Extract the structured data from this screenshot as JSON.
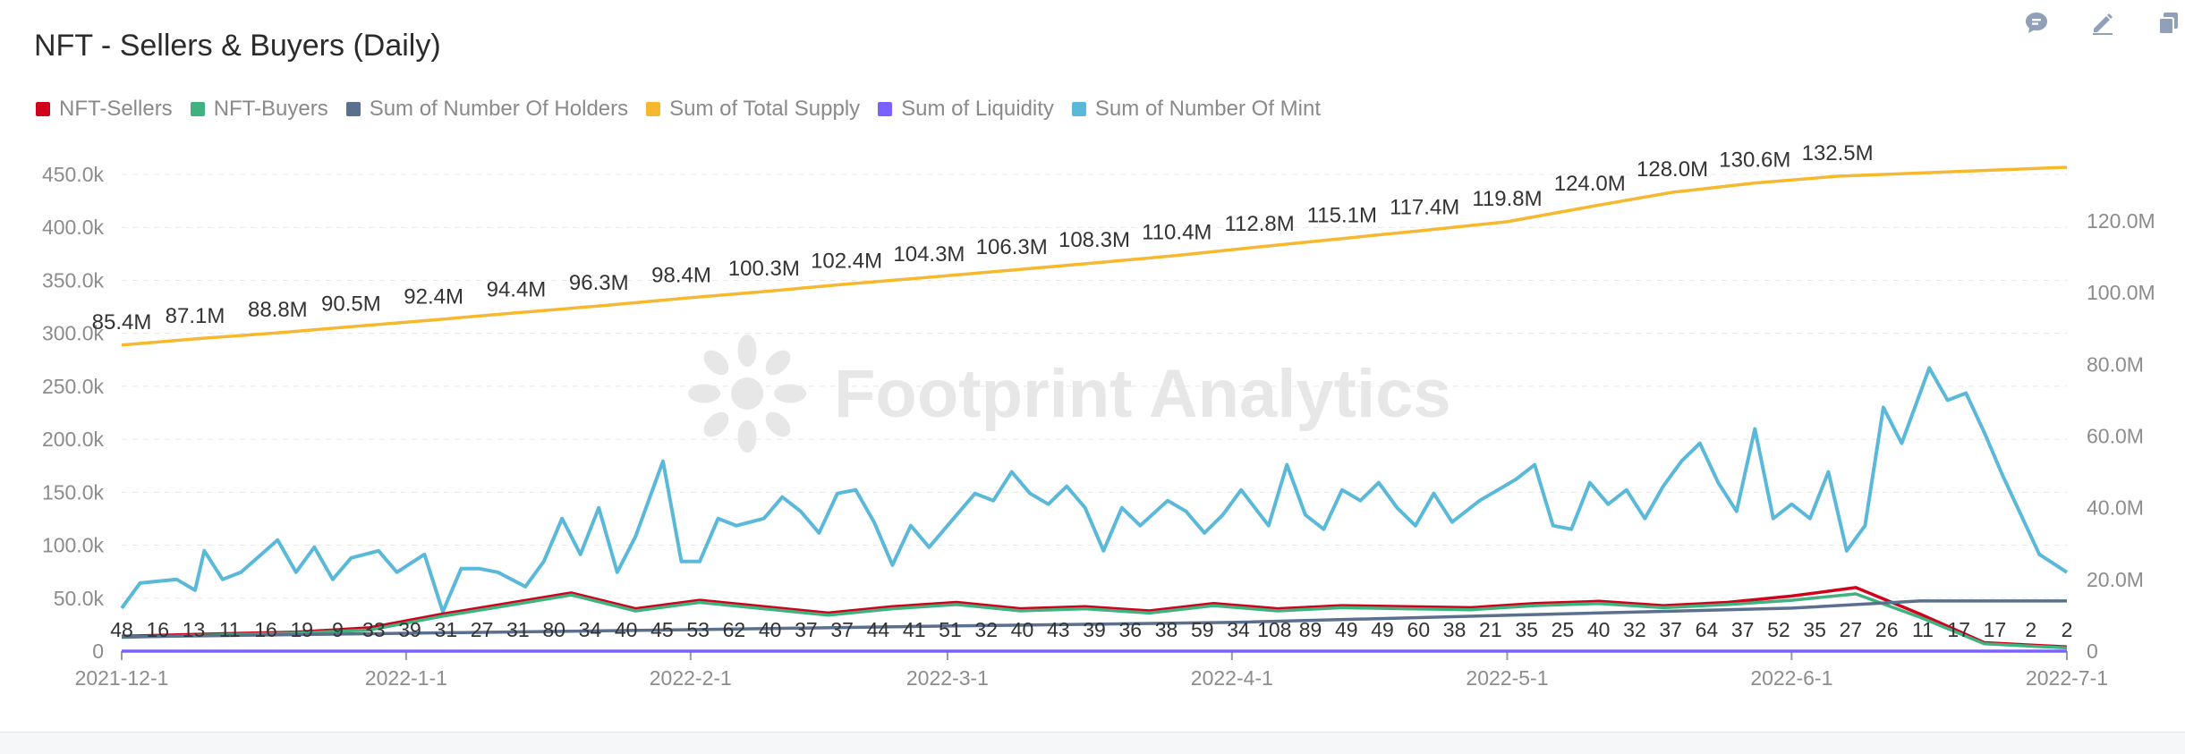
{
  "title": "NFT - Sellers & Buyers (Daily)",
  "toolbar": [
    {
      "name": "comment-icon",
      "icon": "comment"
    },
    {
      "name": "edit-icon",
      "icon": "edit"
    },
    {
      "name": "copy-icon",
      "icon": "copy"
    }
  ],
  "watermark": "Footprint Analytics",
  "colors": {
    "sellers": "#d0021b",
    "buyers": "#3fb27f",
    "holders": "#5b6f8f",
    "supply": "#f5b82e",
    "liquidity": "#7b61ff",
    "mint": "#5ab8d9"
  },
  "legend": [
    {
      "label": "NFT-Sellers",
      "color": "#d0021b"
    },
    {
      "label": "NFT-Buyers",
      "color": "#3fb27f"
    },
    {
      "label": "Sum of Number Of Holders",
      "color": "#5b6f8f"
    },
    {
      "label": "Sum of Total Supply",
      "color": "#f5b82e"
    },
    {
      "label": "Sum of Liquidity",
      "color": "#7b61ff"
    },
    {
      "label": "Sum of Number Of Mint",
      "color": "#5ab8d9"
    }
  ],
  "chart_data": {
    "type": "line",
    "grid": true,
    "legend_position": "top-left",
    "x_range": [
      "2021-12-1",
      "2022-7-1"
    ],
    "x_ticks": [
      "2021-12-1",
      "2022-1-1",
      "2022-2-1",
      "2022-3-1",
      "2022-4-1",
      "2022-5-1",
      "2022-6-1",
      "2022-7-1"
    ],
    "y_left": {
      "ticks": [
        "0",
        "50.0k",
        "100.0k",
        "150.0k",
        "200.0k",
        "250.0k",
        "300.0k",
        "350.0k",
        "400.0k",
        "450.0k"
      ],
      "range": [
        0,
        450000
      ]
    },
    "y_right": {
      "ticks": [
        "0",
        "20.0M",
        "40.0M",
        "60.0M",
        "80.0M",
        "100.0M",
        "120.0M"
      ],
      "range": [
        0,
        133000000
      ]
    },
    "series": [
      {
        "name": "Sum of Number Of Mint",
        "axis": "right",
        "color": "#5ab8d9",
        "points": [
          [
            "2021-12-1",
            12000000
          ],
          [
            "2021-12-3",
            19000000
          ],
          [
            "2021-12-7",
            20000000
          ],
          [
            "2021-12-9",
            17000000
          ],
          [
            "2021-12-10",
            28000000
          ],
          [
            "2021-12-12",
            20000000
          ],
          [
            "2021-12-14",
            22000000
          ],
          [
            "2021-12-18",
            31000000
          ],
          [
            "2021-12-20",
            22000000
          ],
          [
            "2021-12-22",
            29000000
          ],
          [
            "2021-12-24",
            20000000
          ],
          [
            "2021-12-26",
            26000000
          ],
          [
            "2021-12-29",
            28000000
          ],
          [
            "2021-12-31",
            22000000
          ],
          [
            "2022-1-3",
            27000000
          ],
          [
            "2022-1-5",
            11000000
          ],
          [
            "2022-1-7",
            23000000
          ],
          [
            "2022-1-9",
            23000000
          ],
          [
            "2022-1-11",
            22000000
          ],
          [
            "2022-1-14",
            18000000
          ],
          [
            "2022-1-16",
            25000000
          ],
          [
            "2022-1-18",
            37000000
          ],
          [
            "2022-1-20",
            27000000
          ],
          [
            "2022-1-22",
            40000000
          ],
          [
            "2022-1-24",
            22000000
          ],
          [
            "2022-1-26",
            32000000
          ],
          [
            "2022-1-29",
            53000000
          ],
          [
            "2022-1-31",
            25000000
          ],
          [
            "2022-2-2",
            25000000
          ],
          [
            "2022-2-4",
            37000000
          ],
          [
            "2022-2-6",
            35000000
          ],
          [
            "2022-2-9",
            37000000
          ],
          [
            "2022-2-11",
            43000000
          ],
          [
            "2022-2-13",
            39000000
          ],
          [
            "2022-2-15",
            33000000
          ],
          [
            "2022-2-17",
            44000000
          ],
          [
            "2022-2-19",
            45000000
          ],
          [
            "2022-2-21",
            36000000
          ],
          [
            "2022-2-23",
            24000000
          ],
          [
            "2022-2-25",
            35000000
          ],
          [
            "2022-2-27",
            29000000
          ],
          [
            "2022-3-1",
            35000000
          ],
          [
            "2022-3-4",
            44000000
          ],
          [
            "2022-3-6",
            42000000
          ],
          [
            "2022-3-8",
            50000000
          ],
          [
            "2022-3-10",
            44000000
          ],
          [
            "2022-3-12",
            41000000
          ],
          [
            "2022-3-14",
            46000000
          ],
          [
            "2022-3-16",
            40000000
          ],
          [
            "2022-3-18",
            28000000
          ],
          [
            "2022-3-20",
            40000000
          ],
          [
            "2022-3-22",
            35000000
          ],
          [
            "2022-3-25",
            42000000
          ],
          [
            "2022-3-27",
            39000000
          ],
          [
            "2022-3-29",
            33000000
          ],
          [
            "2022-3-31",
            38000000
          ],
          [
            "2022-4-2",
            45000000
          ],
          [
            "2022-4-5",
            35000000
          ],
          [
            "2022-4-7",
            52000000
          ],
          [
            "2022-4-9",
            38000000
          ],
          [
            "2022-4-11",
            34000000
          ],
          [
            "2022-4-13",
            45000000
          ],
          [
            "2022-4-15",
            42000000
          ],
          [
            "2022-4-17",
            47000000
          ],
          [
            "2022-4-19",
            40000000
          ],
          [
            "2022-4-21",
            35000000
          ],
          [
            "2022-4-23",
            44000000
          ],
          [
            "2022-4-25",
            36000000
          ],
          [
            "2022-4-28",
            42000000
          ],
          [
            "2022-4-30",
            45000000
          ],
          [
            "2022-5-2",
            48000000
          ],
          [
            "2022-5-4",
            52000000
          ],
          [
            "2022-5-6",
            35000000
          ],
          [
            "2022-5-8",
            34000000
          ],
          [
            "2022-5-10",
            47000000
          ],
          [
            "2022-5-12",
            41000000
          ],
          [
            "2022-5-14",
            45000000
          ],
          [
            "2022-5-16",
            37000000
          ],
          [
            "2022-5-18",
            46000000
          ],
          [
            "2022-5-20",
            53000000
          ],
          [
            "2022-5-22",
            58000000
          ],
          [
            "2022-5-24",
            47000000
          ],
          [
            "2022-5-26",
            39000000
          ],
          [
            "2022-5-28",
            62000000
          ],
          [
            "2022-5-30",
            37000000
          ],
          [
            "2022-6-1",
            41000000
          ],
          [
            "2022-6-3",
            37000000
          ],
          [
            "2022-6-5",
            50000000
          ],
          [
            "2022-6-7",
            28000000
          ],
          [
            "2022-6-9",
            35000000
          ],
          [
            "2022-6-11",
            68000000
          ],
          [
            "2022-6-13",
            58000000
          ],
          [
            "2022-6-16",
            79000000
          ],
          [
            "2022-6-18",
            70000000
          ],
          [
            "2022-6-20",
            72000000
          ],
          [
            "2022-6-22",
            61000000
          ],
          [
            "2022-6-24",
            49000000
          ],
          [
            "2022-6-26",
            38000000
          ],
          [
            "2022-6-28",
            27000000
          ],
          [
            "2022-7-1",
            22000000
          ]
        ]
      },
      {
        "name": "Sum of Total Supply",
        "axis": "right",
        "color": "#f5b82e",
        "points": [
          [
            "2021-12-1",
            85400000
          ],
          [
            "2021-12-9",
            87100000
          ],
          [
            "2021-12-18",
            88800000
          ],
          [
            "2021-12-26",
            90500000
          ],
          [
            "2022-1-4",
            92400000
          ],
          [
            "2022-1-13",
            94400000
          ],
          [
            "2022-1-22",
            96300000
          ],
          [
            "2022-1-31",
            98400000
          ],
          [
            "2022-2-9",
            100300000
          ],
          [
            "2022-2-18",
            102400000
          ],
          [
            "2022-2-27",
            104300000
          ],
          [
            "2022-3-8",
            106300000
          ],
          [
            "2022-3-17",
            108300000
          ],
          [
            "2022-3-26",
            110400000
          ],
          [
            "2022-4-4",
            112800000
          ],
          [
            "2022-4-13",
            115100000
          ],
          [
            "2022-4-22",
            117400000
          ],
          [
            "2022-5-1",
            119800000
          ],
          [
            "2022-5-10",
            124000000
          ],
          [
            "2022-5-19",
            128000000
          ],
          [
            "2022-5-28",
            130600000
          ],
          [
            "2022-6-6",
            132500000
          ],
          [
            "2022-7-1",
            135000000
          ]
        ]
      },
      {
        "name": "NFT-Sellers",
        "axis": "left",
        "color": "#d0021b",
        "points": [
          [
            "2021-12-1",
            14000
          ],
          [
            "2021-12-10",
            16000
          ],
          [
            "2021-12-20",
            18000
          ],
          [
            "2021-12-28",
            22000
          ],
          [
            "2022-1-5",
            35000
          ],
          [
            "2022-1-12",
            45000
          ],
          [
            "2022-1-19",
            55000
          ],
          [
            "2022-1-26",
            40000
          ],
          [
            "2022-2-2",
            48000
          ],
          [
            "2022-2-9",
            42000
          ],
          [
            "2022-2-16",
            36000
          ],
          [
            "2022-2-23",
            42000
          ],
          [
            "2022-3-2",
            46000
          ],
          [
            "2022-3-9",
            40000
          ],
          [
            "2022-3-16",
            42000
          ],
          [
            "2022-3-23",
            38000
          ],
          [
            "2022-3-30",
            45000
          ],
          [
            "2022-4-6",
            40000
          ],
          [
            "2022-4-13",
            43000
          ],
          [
            "2022-4-20",
            42000
          ],
          [
            "2022-4-27",
            41000
          ],
          [
            "2022-5-4",
            45000
          ],
          [
            "2022-5-11",
            47000
          ],
          [
            "2022-5-18",
            43000
          ],
          [
            "2022-5-25",
            46000
          ],
          [
            "2022-6-1",
            52000
          ],
          [
            "2022-6-8",
            60000
          ],
          [
            "2022-6-15",
            35000
          ],
          [
            "2022-6-22",
            8000
          ],
          [
            "2022-7-1",
            4000
          ]
        ]
      },
      {
        "name": "NFT-Buyers",
        "axis": "left",
        "color": "#3fb27f",
        "points": [
          [
            "2021-12-1",
            13000
          ],
          [
            "2021-12-10",
            15000
          ],
          [
            "2021-12-20",
            17000
          ],
          [
            "2021-12-28",
            20000
          ],
          [
            "2022-1-5",
            33000
          ],
          [
            "2022-1-12",
            43000
          ],
          [
            "2022-1-19",
            53000
          ],
          [
            "2022-1-26",
            38000
          ],
          [
            "2022-2-2",
            46000
          ],
          [
            "2022-2-9",
            40000
          ],
          [
            "2022-2-16",
            34000
          ],
          [
            "2022-2-23",
            40000
          ],
          [
            "2022-3-2",
            44000
          ],
          [
            "2022-3-9",
            38000
          ],
          [
            "2022-3-16",
            40000
          ],
          [
            "2022-3-23",
            36000
          ],
          [
            "2022-3-30",
            43000
          ],
          [
            "2022-4-6",
            38000
          ],
          [
            "2022-4-13",
            41000
          ],
          [
            "2022-4-20",
            40000
          ],
          [
            "2022-4-27",
            39000
          ],
          [
            "2022-5-4",
            43000
          ],
          [
            "2022-5-11",
            45000
          ],
          [
            "2022-5-18",
            41000
          ],
          [
            "2022-5-25",
            44000
          ],
          [
            "2022-6-1",
            48000
          ],
          [
            "2022-6-8",
            54000
          ],
          [
            "2022-6-15",
            32000
          ],
          [
            "2022-6-22",
            7000
          ],
          [
            "2022-7-1",
            3000
          ]
        ]
      },
      {
        "name": "Sum of Number Of Holders",
        "axis": "right",
        "color": "#5b6f8f",
        "points": [
          [
            "2021-12-1",
            4000000
          ],
          [
            "2022-1-1",
            5000000
          ],
          [
            "2022-2-1",
            6000000
          ],
          [
            "2022-3-1",
            7000000
          ],
          [
            "2022-4-1",
            8000000
          ],
          [
            "2022-5-1",
            10000000
          ],
          [
            "2022-6-1",
            12000000
          ],
          [
            "2022-6-15",
            14000000
          ],
          [
            "2022-7-1",
            14000000
          ]
        ]
      },
      {
        "name": "Sum of Liquidity",
        "axis": "left",
        "color": "#7b61ff",
        "points": [
          [
            "2021-12-1",
            0
          ],
          [
            "2022-7-1",
            0
          ]
        ]
      }
    ],
    "annotations_supply": [
      {
        "date": "2021-12-1",
        "label": "85.4M"
      },
      {
        "date": "2021-12-9",
        "label": "87.1M"
      },
      {
        "date": "2021-12-18",
        "label": "88.8M"
      },
      {
        "date": "2021-12-26",
        "label": "90.5M"
      },
      {
        "date": "2022-1-4",
        "label": "92.4M"
      },
      {
        "date": "2022-1-13",
        "label": "94.4M"
      },
      {
        "date": "2022-1-22",
        "label": "96.3M"
      },
      {
        "date": "2022-1-31",
        "label": "98.4M"
      },
      {
        "date": "2022-2-9",
        "label": "100.3M"
      },
      {
        "date": "2022-2-18",
        "label": "102.4M"
      },
      {
        "date": "2022-2-27",
        "label": "104.3M"
      },
      {
        "date": "2022-3-8",
        "label": "106.3M"
      },
      {
        "date": "2022-3-17",
        "label": "108.3M"
      },
      {
        "date": "2022-3-26",
        "label": "110.4M"
      },
      {
        "date": "2022-4-4",
        "label": "112.8M"
      },
      {
        "date": "2022-4-13",
        "label": "115.1M"
      },
      {
        "date": "2022-4-22",
        "label": "117.4M"
      },
      {
        "date": "2022-5-1",
        "label": "119.8M"
      },
      {
        "date": "2022-5-10",
        "label": "124.0M"
      },
      {
        "date": "2022-5-19",
        "label": "128.0M"
      },
      {
        "date": "2022-5-28",
        "label": "130.6M"
      },
      {
        "date": "2022-6-6",
        "label": "132.5M"
      }
    ],
    "bottom_labels": [
      "48",
      "16",
      "13",
      "11",
      "16",
      "19",
      "9",
      "33",
      "39",
      "31",
      "27",
      "31",
      "80",
      "34",
      "40",
      "45",
      "53",
      "62",
      "40",
      "37",
      "37",
      "44",
      "41",
      "51",
      "32",
      "40",
      "43",
      "39",
      "36",
      "38",
      "59",
      "34",
      "108",
      "89",
      "49",
      "49",
      "60",
      "38",
      "21",
      "35",
      "25",
      "40",
      "32",
      "37",
      "64",
      "37",
      "52",
      "35",
      "27",
      "26",
      "11",
      "17",
      "17",
      "2",
      "2"
    ]
  }
}
